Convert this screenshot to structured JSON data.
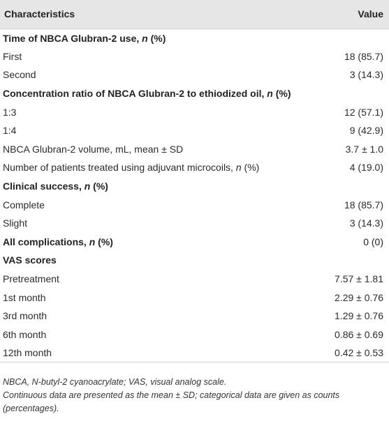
{
  "header": {
    "characteristics": "Characteristics",
    "value": "Value"
  },
  "rows": [
    {
      "type": "section",
      "label": "Time of NBCA Glubran-2 use, ",
      "ital": "n",
      "suffix": " (%)",
      "value": ""
    },
    {
      "type": "item",
      "label": "First",
      "ital": "",
      "suffix": "",
      "value": "18 (85.7)"
    },
    {
      "type": "item",
      "label": "Second",
      "ital": "",
      "suffix": "",
      "value": "3 (14.3)"
    },
    {
      "type": "section",
      "label": "Concentration ratio of NBCA Glubran-2 to ethiodized oil, ",
      "ital": "n",
      "suffix": " (%)",
      "value": ""
    },
    {
      "type": "item",
      "label": "1:3",
      "ital": "",
      "suffix": "",
      "value": "12 (57.1)"
    },
    {
      "type": "item",
      "label": "1:4",
      "ital": "",
      "suffix": "",
      "value": "9 (42.9)"
    },
    {
      "type": "item",
      "label": "NBCA Glubran-2 volume, mL, mean ± SD",
      "ital": "",
      "suffix": "",
      "value": "3.7 ± 1.0"
    },
    {
      "type": "item",
      "label": "Number of patients treated using adjuvant microcoils, ",
      "ital": "n",
      "suffix": " (%)",
      "value": "4 (19.0)"
    },
    {
      "type": "section",
      "label": "Clinical success, ",
      "ital": "n",
      "suffix": " (%)",
      "value": ""
    },
    {
      "type": "item",
      "label": "Complete",
      "ital": "",
      "suffix": "",
      "value": "18 (85.7)"
    },
    {
      "type": "item",
      "label": "Slight",
      "ital": "",
      "suffix": "",
      "value": "3 (14.3)"
    },
    {
      "type": "section",
      "label": "All complications, ",
      "ital": "n",
      "suffix": " (%)",
      "value": "0 (0)"
    },
    {
      "type": "section",
      "label": "VAS scores",
      "ital": "",
      "suffix": "",
      "value": ""
    },
    {
      "type": "item",
      "label": "Pretreatment",
      "ital": "",
      "suffix": "",
      "value": "7.57 ± 1.81"
    },
    {
      "type": "item",
      "label": "1st month",
      "ital": "",
      "suffix": "",
      "value": "2.29 ± 0.76"
    },
    {
      "type": "item",
      "label": "3rd month",
      "ital": "",
      "suffix": "",
      "value": "1.29 ± 0.76"
    },
    {
      "type": "item",
      "label": "6th month",
      "ital": "",
      "suffix": "",
      "value": "0.86 ± 0.69"
    },
    {
      "type": "item",
      "label": "12th month",
      "ital": "",
      "suffix": "",
      "value": "0.42 ± 0.53"
    }
  ],
  "notes": {
    "abbreviations": "NBCA, N-butyl-2 cyanoacrylate; VAS, visual analog scale.",
    "stats": "Continuous data are presented as the mean ± SD; categorical data are given as counts (percentages)."
  }
}
